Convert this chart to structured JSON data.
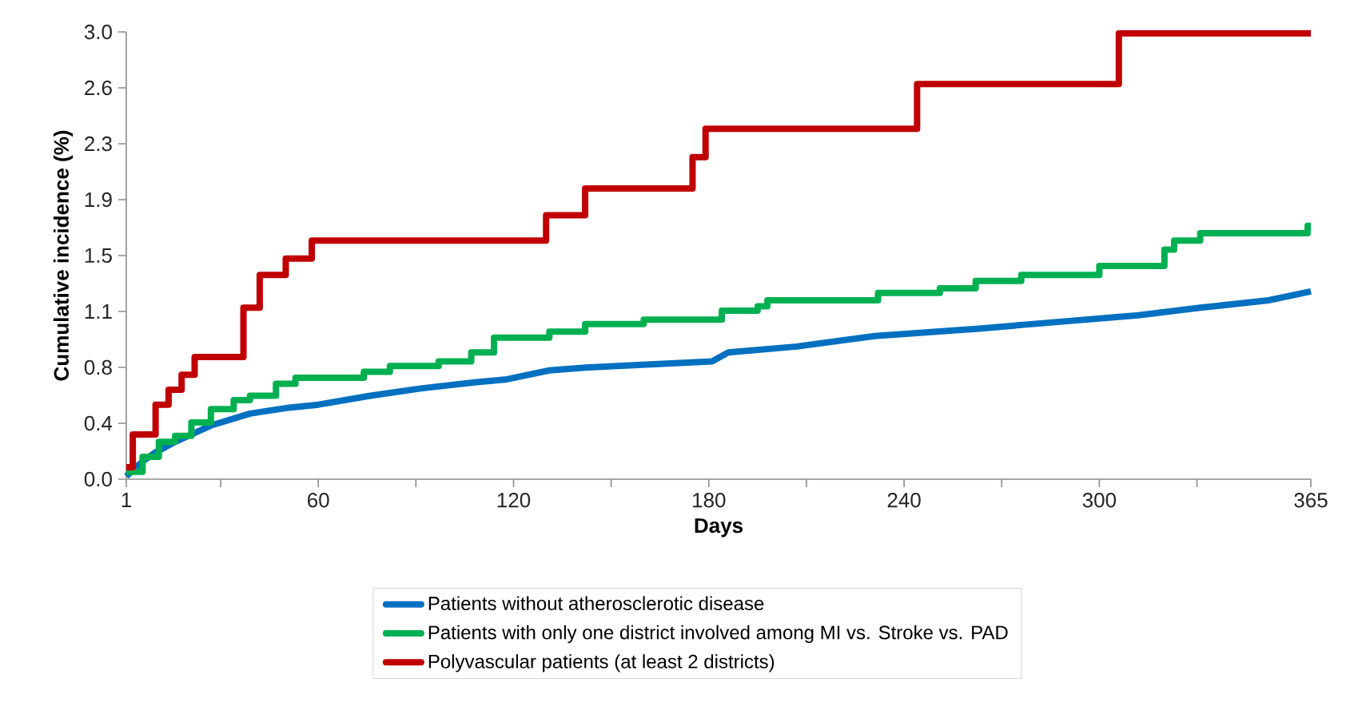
{
  "chart_data": {
    "type": "step",
    "xlabel": "Days",
    "ylabel": "Cumulative incidence (%)",
    "xlim": [
      1,
      365
    ],
    "ylim": [
      0,
      3.0
    ],
    "xticks": [
      1,
      {
        "value": 30,
        "label": null
      },
      60,
      {
        "value": 90,
        "label": null
      },
      120,
      {
        "value": 150,
        "label": null
      },
      180,
      {
        "value": 210,
        "label": null
      },
      240,
      {
        "value": 270,
        "label": null
      },
      300,
      {
        "value": 330,
        "label": null
      },
      365
    ],
    "yticks": [
      {
        "value": 0,
        "label": "0.0"
      },
      {
        "value": 0.375,
        "label": "0.4"
      },
      {
        "value": 0.75,
        "label": "0.8"
      },
      {
        "value": 1.125,
        "label": "1.1"
      },
      {
        "value": 1.5,
        "label": "1.5"
      },
      {
        "value": 1.875,
        "label": "1.9"
      },
      {
        "value": 2.25,
        "label": "2.3"
      },
      {
        "value": 2.625,
        "label": "2.6"
      },
      {
        "value": 3.0,
        "label": "3.0"
      }
    ],
    "grid": false,
    "legend": "bottom",
    "marker": "none",
    "line_style": "solid",
    "series": [
      {
        "name": "Patients without atherosclerotic disease",
        "color": "#0070c0",
        "type": "line",
        "x": [
          1,
          6,
          10,
          16,
          27,
          39,
          51,
          60,
          76,
          92,
          108,
          118,
          131,
          143,
          171,
          181,
          186,
          207,
          231,
          263,
          279,
          312,
          331,
          352,
          365
        ],
        "values": [
          0.02,
          0.12,
          0.18,
          0.25,
          0.36,
          0.44,
          0.48,
          0.5,
          0.56,
          0.61,
          0.65,
          0.67,
          0.73,
          0.75,
          0.78,
          0.79,
          0.85,
          0.89,
          0.96,
          1.01,
          1.04,
          1.1,
          1.15,
          1.2,
          1.26
        ]
      },
      {
        "name": "Patients with only one district involved among MI vs. Stroke vs. PAD",
        "color": "#00b050",
        "x": [
          1,
          6,
          11,
          16,
          21,
          27,
          34,
          39,
          47,
          53,
          74,
          82,
          97,
          107,
          114,
          131,
          142,
          160,
          184,
          195,
          198,
          232,
          251,
          262,
          276,
          300,
          320,
          323,
          331,
          364,
          365
        ],
        "values": [
          0.05,
          0.15,
          0.25,
          0.29,
          0.38,
          0.47,
          0.53,
          0.56,
          0.64,
          0.68,
          0.72,
          0.76,
          0.79,
          0.85,
          0.95,
          0.99,
          1.04,
          1.07,
          1.13,
          1.16,
          1.2,
          1.25,
          1.28,
          1.33,
          1.37,
          1.43,
          1.54,
          1.6,
          1.65,
          1.7,
          1.7
        ]
      },
      {
        "name": "Polyvascular patients (at least 2 districts)",
        "color": "#c00000",
        "x": [
          1,
          3,
          10,
          14,
          18,
          22,
          37,
          42,
          50,
          58,
          130,
          142,
          175,
          179,
          244,
          306,
          365
        ],
        "values": [
          0.08,
          0.3,
          0.5,
          0.6,
          0.7,
          0.82,
          1.15,
          1.37,
          1.48,
          1.6,
          1.77,
          1.95,
          2.16,
          2.35,
          2.65,
          2.99,
          2.99
        ]
      }
    ]
  }
}
